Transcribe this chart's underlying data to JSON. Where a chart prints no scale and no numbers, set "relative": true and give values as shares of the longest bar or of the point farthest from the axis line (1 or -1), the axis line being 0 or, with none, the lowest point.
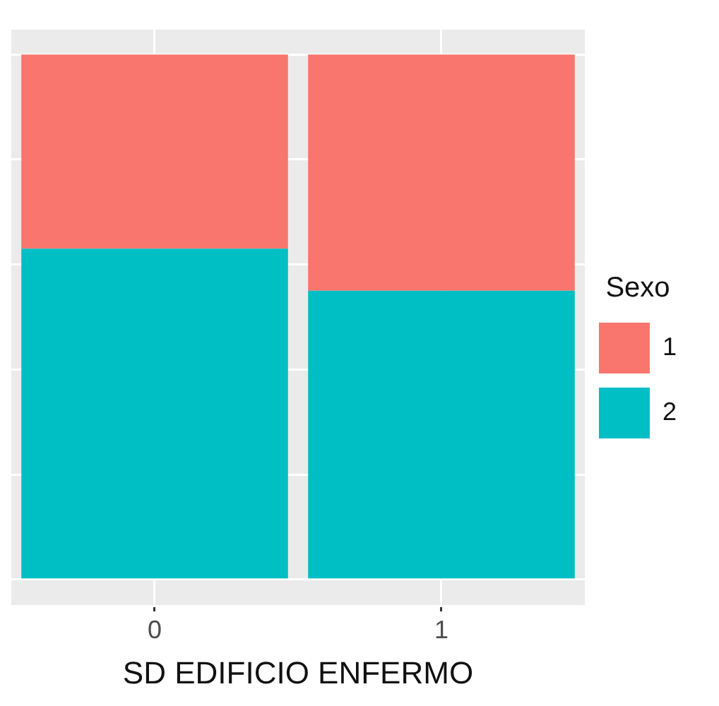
{
  "chart_data": {
    "type": "bar",
    "xlabel": "SD EDIFICIO ENFERMO",
    "legend_title": "Sexo",
    "categories": [
      "0",
      "1"
    ],
    "stacked": true,
    "relative": true,
    "grid": true,
    "legend": "right",
    "series": [
      {
        "name": "2",
        "color": "#00bfc4",
        "values": [
          0.63,
          0.55
        ]
      },
      {
        "name": "1",
        "color": "#f8766d",
        "values": [
          0.37,
          0.45
        ]
      }
    ]
  }
}
